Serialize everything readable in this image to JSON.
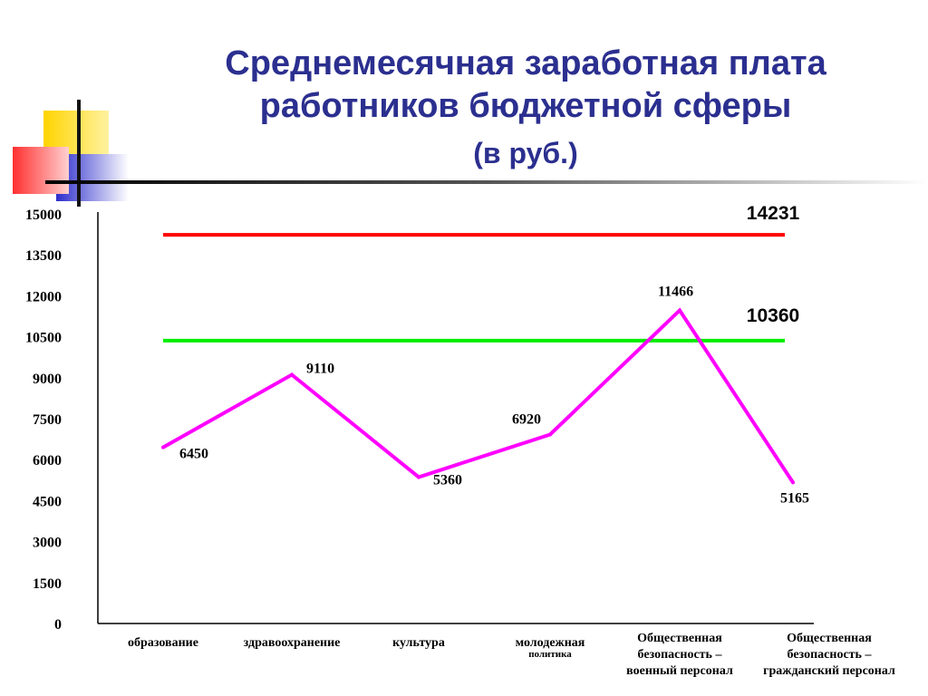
{
  "title": {
    "line1": "Среднемесячная заработная плата",
    "line2": "работников бюджетной сферы",
    "line3": "(в руб.)"
  },
  "colors": {
    "title": "#2b2f8f",
    "series": "#ff00ff",
    "ref_high": "#ff0000",
    "ref_low": "#00ee00",
    "deco_yellow": "#ffd400",
    "deco_red": "#ff3030",
    "deco_blue": "#2c2ccc"
  },
  "chart_data": {
    "type": "line",
    "categories": [
      [
        "образование"
      ],
      [
        "здравоохранение"
      ],
      [
        "культура"
      ],
      [
        "молодежная",
        "политика"
      ],
      [
        "Общественная",
        "безопасность –",
        "военный  персонал"
      ],
      [
        "Общественная",
        "безопасность –",
        "гражданский  персонал"
      ]
    ],
    "series": [
      {
        "values": [
          6450,
          9110,
          5360,
          6920,
          11466,
          5165
        ]
      }
    ],
    "reference_lines": [
      {
        "value": 14231,
        "label": "14231",
        "color": "#ff0000"
      },
      {
        "value": 10360,
        "label": "10360",
        "color": "#00ee00"
      }
    ],
    "yticks": [
      0,
      1500,
      3000,
      4500,
      6000,
      7500,
      9000,
      10500,
      12000,
      13500,
      15000
    ],
    "ylim": [
      0,
      15000
    ],
    "xlabel": "",
    "ylabel": "",
    "grid": false,
    "legend": "none"
  }
}
